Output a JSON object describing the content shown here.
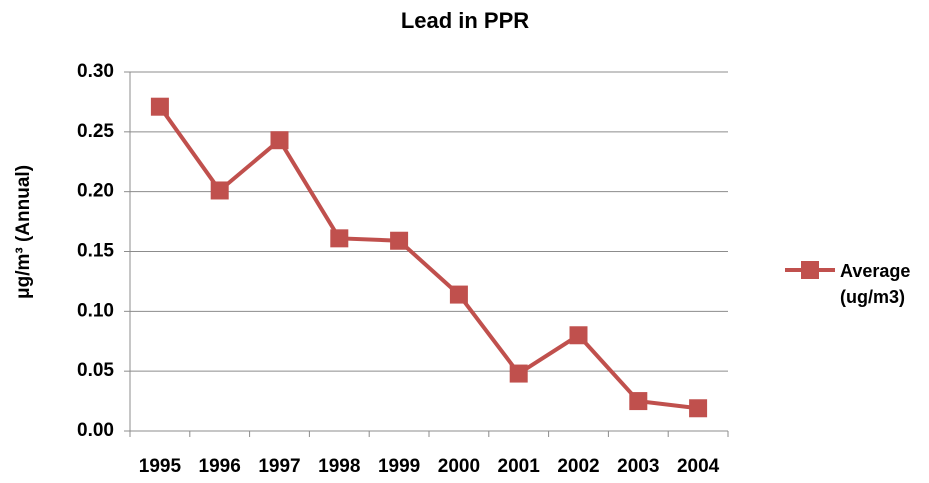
{
  "chart_data": {
    "type": "line",
    "title": "Lead in PPR",
    "y_label": "μg/m³ (Annual)",
    "categories": [
      "1995",
      "1996",
      "1997",
      "1998",
      "1999",
      "2000",
      "2001",
      "2002",
      "2003",
      "2004"
    ],
    "series": [
      {
        "name": "Average (ug/m3)",
        "color": "#c0504d",
        "values": [
          0.271,
          0.201,
          0.243,
          0.161,
          0.159,
          0.114,
          0.048,
          0.08,
          0.025,
          0.019
        ]
      }
    ],
    "ylim": [
      0,
      0.3
    ],
    "yticks": [
      {
        "value": 0,
        "label": "0.00"
      },
      0.05,
      {
        "value": 0.1,
        "label": "0.10"
      },
      0.15,
      {
        "value": 0.2,
        "label": "0.20"
      },
      0.25,
      {
        "value": 0.3,
        "label": "0.30"
      }
    ],
    "grid": true,
    "legend": "right"
  }
}
